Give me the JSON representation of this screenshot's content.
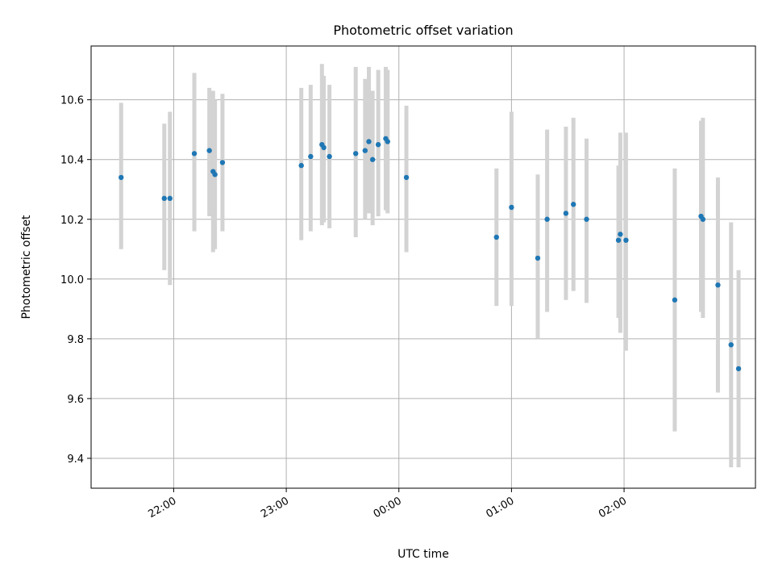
{
  "chart_data": {
    "type": "scatter",
    "title": "Photometric offset variation",
    "xlabel": "UTC time",
    "ylabel": "Photometric offset",
    "x_unit": "UTC time, relative day (hours)",
    "xlim": [
      "21:16",
      "03:10"
    ],
    "ylim": [
      9.3,
      10.78
    ],
    "x_ticks": [
      {
        "value": "22:00",
        "label": "22:00"
      },
      {
        "value": "23:00",
        "label": "23:00"
      },
      {
        "value": "00:00",
        "label": "00:00"
      },
      {
        "value": "01:00",
        "label": "01:00"
      },
      {
        "value": "02:00",
        "label": "02:00"
      }
    ],
    "y_ticks": [
      {
        "value": 9.4,
        "label": "9.4"
      },
      {
        "value": 9.6,
        "label": "9.6"
      },
      {
        "value": 9.8,
        "label": "9.8"
      },
      {
        "value": 10.0,
        "label": "10.0"
      },
      {
        "value": 10.2,
        "label": "10.2"
      },
      {
        "value": 10.4,
        "label": "10.4"
      },
      {
        "value": 10.6,
        "label": "10.6"
      }
    ],
    "grid": true,
    "marker_color": "#1f77b4",
    "errorbar_color": "#d3d3d3",
    "points": [
      {
        "t": "21:32",
        "y": 10.34,
        "lo": 10.1,
        "hi": 10.59
      },
      {
        "t": "21:55",
        "y": 10.27,
        "lo": 10.03,
        "hi": 10.52
      },
      {
        "t": "21:58",
        "y": 10.27,
        "lo": 9.98,
        "hi": 10.56
      },
      {
        "t": "22:11",
        "y": 10.42,
        "lo": 10.16,
        "hi": 10.69
      },
      {
        "t": "22:19",
        "y": 10.43,
        "lo": 10.21,
        "hi": 10.64
      },
      {
        "t": "22:21",
        "y": 10.36,
        "lo": 10.09,
        "hi": 10.63
      },
      {
        "t": "22:22",
        "y": 10.35,
        "lo": 10.1,
        "hi": 10.6
      },
      {
        "t": "22:26",
        "y": 10.39,
        "lo": 10.16,
        "hi": 10.62
      },
      {
        "t": "23:08",
        "y": 10.38,
        "lo": 10.13,
        "hi": 10.64
      },
      {
        "t": "23:13",
        "y": 10.41,
        "lo": 10.16,
        "hi": 10.65
      },
      {
        "t": "23:19",
        "y": 10.45,
        "lo": 10.18,
        "hi": 10.72
      },
      {
        "t": "23:20",
        "y": 10.44,
        "lo": 10.19,
        "hi": 10.68
      },
      {
        "t": "23:23",
        "y": 10.41,
        "lo": 10.17,
        "hi": 10.65
      },
      {
        "t": "23:37",
        "y": 10.42,
        "lo": 10.14,
        "hi": 10.71
      },
      {
        "t": "23:42",
        "y": 10.43,
        "lo": 10.2,
        "hi": 10.67
      },
      {
        "t": "23:44",
        "y": 10.46,
        "lo": 10.22,
        "hi": 10.71
      },
      {
        "t": "23:46",
        "y": 10.4,
        "lo": 10.18,
        "hi": 10.63
      },
      {
        "t": "23:49",
        "y": 10.45,
        "lo": 10.21,
        "hi": 10.7
      },
      {
        "t": "23:53",
        "y": 10.47,
        "lo": 10.23,
        "hi": 10.71
      },
      {
        "t": "23:54",
        "y": 10.46,
        "lo": 10.22,
        "hi": 10.7
      },
      {
        "t": "00:04",
        "y": 10.34,
        "lo": 10.09,
        "hi": 10.58
      },
      {
        "t": "00:52",
        "y": 10.14,
        "lo": 9.91,
        "hi": 10.37
      },
      {
        "t": "01:00",
        "y": 10.24,
        "lo": 9.91,
        "hi": 10.56
      },
      {
        "t": "01:14",
        "y": 10.07,
        "lo": 9.8,
        "hi": 10.35
      },
      {
        "t": "01:19",
        "y": 10.2,
        "lo": 9.89,
        "hi": 10.5
      },
      {
        "t": "01:29",
        "y": 10.22,
        "lo": 9.93,
        "hi": 10.51
      },
      {
        "t": "01:33",
        "y": 10.25,
        "lo": 9.96,
        "hi": 10.54
      },
      {
        "t": "01:40",
        "y": 10.2,
        "lo": 9.92,
        "hi": 10.47
      },
      {
        "t": "01:57",
        "y": 10.13,
        "lo": 9.87,
        "hi": 10.38
      },
      {
        "t": "01:58",
        "y": 10.15,
        "lo": 9.82,
        "hi": 10.49
      },
      {
        "t": "02:01",
        "y": 10.13,
        "lo": 9.76,
        "hi": 10.49
      },
      {
        "t": "02:27",
        "y": 9.93,
        "lo": 9.49,
        "hi": 10.37
      },
      {
        "t": "02:41",
        "y": 10.21,
        "lo": 9.89,
        "hi": 10.53
      },
      {
        "t": "02:42",
        "y": 10.2,
        "lo": 9.87,
        "hi": 10.54
      },
      {
        "t": "02:50",
        "y": 9.98,
        "lo": 9.62,
        "hi": 10.34
      },
      {
        "t": "02:57",
        "y": 9.78,
        "lo": 9.37,
        "hi": 10.19
      },
      {
        "t": "03:01",
        "y": 9.7,
        "lo": 9.37,
        "hi": 10.03
      }
    ]
  }
}
